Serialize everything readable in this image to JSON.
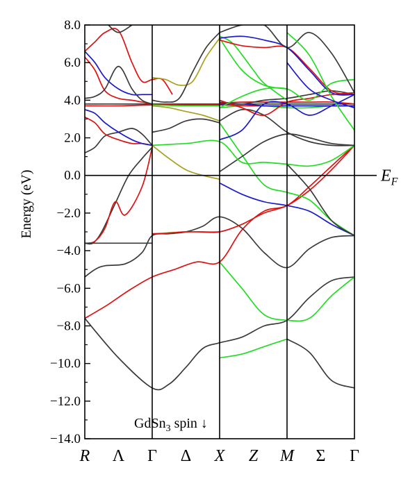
{
  "chart_data": {
    "type": "line",
    "title": "",
    "xlabel": "",
    "ylabel": "Energy (eV)",
    "ylim": [
      -14.0,
      8.0
    ],
    "y_ticks": [
      8.0,
      6.0,
      4.0,
      2.0,
      0.0,
      -2.0,
      -4.0,
      -6.0,
      -8.0,
      -10.0,
      -12.0,
      -14.0
    ],
    "y_tick_labels": [
      "8.0",
      "6.0",
      "4.0",
      "2.0",
      "0.0",
      "−2.0",
      "−4.0",
      "−6.0",
      "−8.0",
      "−10.0",
      "−12.0",
      "−14.0"
    ],
    "k_path": {
      "labels": [
        "R",
        "Λ",
        "Γ",
        "Δ",
        "X",
        "Z",
        "M",
        "Σ",
        "Γ"
      ],
      "positions": [
        0,
        0.5,
        1.0,
        1.5,
        2.0,
        2.5,
        3.0,
        3.5,
        4.0
      ],
      "high_symmetry": [
        1.0,
        2.0,
        3.0
      ],
      "greek": [
        false,
        true,
        true,
        true,
        false,
        false,
        false,
        true,
        true
      ]
    },
    "fermi_level": {
      "energy": 0.0,
      "label": "E",
      "subscript": "F"
    },
    "annotation": {
      "prefix": "GdSn",
      "sub": "3",
      "suffix": " spin ↓"
    },
    "colors": {
      "black": "#3a3a3a",
      "red": "#e01010",
      "blue": "#1a1acc",
      "green": "#22dd22",
      "olive": "#a8a020",
      "axis": "#000000"
    },
    "series": [
      {
        "color": "red",
        "k": [
          0,
          0.33,
          0.66,
          1.0,
          1.33,
          1.66,
          2.0,
          2.33,
          2.66,
          3.0,
          3.33,
          3.66,
          4.0
        ],
        "e": [
          -7.6,
          -6.9,
          -6.1,
          -5.4,
          -5.0,
          -4.6,
          -4.6,
          -2.9,
          -1.9,
          -1.6,
          -0.6,
          0.5,
          1.6
        ]
      },
      {
        "color": "black",
        "k": [
          0,
          0.5,
          1.0,
          1.25,
          1.5,
          1.75,
          2.0,
          2.33,
          2.66,
          3.0,
          3.33,
          3.66,
          4.0
        ],
        "e": [
          -7.6,
          -9.7,
          -11.3,
          -11.1,
          -10.2,
          -9.2,
          -8.9,
          -8.6,
          -8.0,
          -7.7,
          -6.5,
          -5.6,
          -5.4
        ]
      },
      {
        "color": "green",
        "k": [
          2.0,
          2.33,
          2.66,
          3.0,
          3.33,
          3.66,
          4.0
        ],
        "e": [
          -4.6,
          -6.0,
          -7.4,
          -7.7,
          -7.6,
          -6.4,
          -5.4
        ]
      },
      {
        "color": "green",
        "k": [
          2.0,
          2.33,
          2.66,
          3.0
        ],
        "e": [
          -9.7,
          -9.5,
          -9.1,
          -8.7
        ]
      },
      {
        "color": "black",
        "k": [
          3.0,
          3.33,
          3.66,
          4.0
        ],
        "e": [
          -8.7,
          -9.4,
          -10.9,
          -11.3
        ]
      },
      {
        "color": "black",
        "k": [
          0,
          0.15,
          0.3,
          0.6,
          0.85,
          1.0,
          1.25,
          1.5,
          1.75,
          2.0,
          2.33,
          2.66,
          3.0,
          3.33,
          3.66,
          4.0
        ],
        "e": [
          -5.4,
          -5.0,
          -4.8,
          -4.7,
          -4.1,
          -3.2,
          -3.1,
          -3.0,
          -2.7,
          -2.2,
          -2.8,
          -4.1,
          -4.9,
          -3.9,
          -3.3,
          -3.2
        ]
      },
      {
        "color": "black",
        "k": [
          0,
          0.12,
          0.25,
          0.45,
          0.65,
          0.85,
          1.0
        ],
        "e": [
          -3.6,
          -3.6,
          -3.0,
          -1.5,
          0.0,
          0.9,
          1.5
        ]
      },
      {
        "color": "red",
        "k": [
          0,
          0.15,
          0.3,
          0.45,
          0.6,
          0.85,
          1.0
        ],
        "e": [
          -3.6,
          -3.5,
          -2.8,
          -1.4,
          -2.1,
          -0.6,
          1.5
        ]
      },
      {
        "color": "olive",
        "k": [
          1.0,
          1.5,
          2.0
        ],
        "e": [
          -3.1,
          -3.0,
          -3.0
        ]
      },
      {
        "color": "red",
        "k": [
          1.0,
          1.15,
          1.3,
          1.5,
          1.7,
          2.0,
          2.33,
          2.66,
          3.0,
          3.33,
          3.66,
          4.0
        ],
        "e": [
          -3.1,
          -3.1,
          -3.05,
          -3.0,
          -3.0,
          -3.0,
          -2.6,
          -2.0,
          -1.6,
          -0.8,
          0.3,
          1.6
        ]
      },
      {
        "color": "blue",
        "k": [
          2.0,
          2.33,
          2.66,
          3.0,
          3.33,
          3.66,
          4.0
        ],
        "e": [
          -0.4,
          -1.0,
          -1.4,
          -1.6,
          -1.9,
          -2.6,
          -3.2
        ]
      },
      {
        "color": "green",
        "k": [
          2.0,
          2.33,
          2.66,
          3.0,
          3.33,
          3.66,
          4.0
        ],
        "e": [
          2.8,
          1.1,
          -0.5,
          -0.9,
          -1.3,
          -2.4,
          -3.2
        ]
      },
      {
        "color": "black",
        "k": [
          3.0,
          3.33,
          3.66,
          4.0
        ],
        "e": [
          0.6,
          -0.7,
          -2.4,
          -3.2
        ]
      },
      {
        "color": "black",
        "k": [
          2.0,
          2.33,
          2.66,
          3.0,
          3.33,
          3.66,
          4.0
        ],
        "e": [
          0.2,
          1.0,
          1.8,
          2.2,
          2.0,
          1.7,
          1.6
        ]
      },
      {
        "color": "green",
        "k": [
          1.0,
          1.5,
          2.0,
          2.33,
          2.66,
          3.0,
          3.33,
          3.66,
          4.0
        ],
        "e": [
          1.6,
          1.7,
          1.8,
          0.7,
          0.7,
          0.6,
          0.5,
          0.8,
          1.6
        ]
      },
      {
        "color": "olive",
        "k": [
          1.0,
          1.25,
          1.5,
          1.75,
          2.0
        ],
        "e": [
          1.6,
          0.9,
          0.3,
          0.0,
          -0.2
        ]
      },
      {
        "color": "black",
        "k": [
          0,
          0.15,
          0.3,
          0.5,
          0.7,
          0.85,
          1.0
        ],
        "e": [
          1.2,
          1.5,
          2.1,
          2.3,
          2.5,
          2.2,
          1.6
        ]
      },
      {
        "color": "red",
        "k": [
          0,
          0.15,
          0.3,
          0.5,
          0.7,
          0.85,
          1.0
        ],
        "e": [
          3.1,
          2.8,
          2.2,
          1.9,
          1.7,
          1.7,
          1.6
        ]
      },
      {
        "color": "blue",
        "k": [
          0,
          0.15,
          0.3,
          0.5,
          0.7,
          0.85,
          1.0
        ],
        "e": [
          3.5,
          3.3,
          2.8,
          2.3,
          1.9,
          1.7,
          1.6
        ]
      },
      {
        "color": "black",
        "k": [
          1.0,
          1.25,
          1.5,
          1.75,
          2.0
        ],
        "e": [
          2.3,
          2.5,
          2.9,
          3.0,
          2.8
        ]
      },
      {
        "color": "olive",
        "k": [
          1.0,
          1.25,
          1.5,
          1.75,
          2.0
        ],
        "e": [
          3.7,
          3.6,
          3.4,
          3.2,
          2.9
        ]
      },
      {
        "color": "black",
        "k": [
          2.0,
          2.33,
          2.66,
          3.0,
          3.33,
          3.66,
          4.0
        ],
        "e": [
          2.9,
          3.5,
          3.2,
          2.3,
          1.8,
          1.6,
          1.6
        ]
      },
      {
        "color": "green",
        "k": [
          2.0,
          2.33,
          2.66,
          3.0,
          3.33,
          3.66,
          4.0
        ],
        "e": [
          3.6,
          3.7,
          3.7,
          3.6,
          3.6,
          3.7,
          3.7
        ]
      },
      {
        "color": "black",
        "k": [
          0,
          0.5,
          1.0,
          1.5,
          2.0,
          2.5,
          3.0,
          3.5,
          4.0
        ],
        "e": [
          3.8,
          3.8,
          3.8,
          3.8,
          3.8,
          3.8,
          3.8,
          3.8,
          3.8
        ]
      },
      {
        "color": "red",
        "k": [
          0,
          0.5,
          1.0,
          1.5,
          2.0,
          2.5,
          3.0,
          3.5,
          4.0
        ],
        "e": [
          3.7,
          3.7,
          3.75,
          3.75,
          3.75,
          3.7,
          3.7,
          3.7,
          3.7
        ]
      },
      {
        "color": "green",
        "k": [
          1.0,
          1.5,
          2.0
        ],
        "e": [
          3.75,
          3.7,
          3.7
        ]
      },
      {
        "color": "blue",
        "k": [
          2.0,
          2.33,
          2.66,
          3.0,
          3.33,
          3.66,
          4.0
        ],
        "e": [
          3.8,
          3.8,
          3.7,
          3.7,
          3.7,
          3.7,
          3.7
        ]
      },
      {
        "color": "red",
        "k": [
          2.0,
          2.33,
          2.66,
          3.0,
          3.33,
          3.66,
          4.0
        ],
        "e": [
          3.85,
          3.9,
          3.9,
          3.9,
          3.9,
          3.9,
          3.8
        ]
      },
      {
        "color": "black",
        "k": [
          2.0,
          2.33,
          2.66,
          3.0,
          3.33,
          3.66,
          4.0
        ],
        "e": [
          3.9,
          3.8,
          4.0,
          4.1,
          4.3,
          4.5,
          4.3
        ]
      },
      {
        "color": "red",
        "k": [
          2.0,
          2.33,
          2.66,
          3.0,
          3.33,
          3.66,
          4.0
        ],
        "e": [
          4.0,
          3.6,
          3.2,
          3.9,
          4.1,
          4.3,
          4.4
        ]
      },
      {
        "color": "blue",
        "k": [
          2.0,
          2.33,
          2.66,
          3.0,
          3.33,
          3.66,
          4.0
        ],
        "e": [
          1.9,
          2.4,
          3.8,
          3.8,
          3.2,
          3.7,
          4.3
        ]
      },
      {
        "color": "green",
        "k": [
          2.0,
          2.33,
          2.66,
          3.0,
          3.33,
          3.66,
          4.0
        ],
        "e": [
          3.6,
          4.2,
          4.6,
          4.6,
          4.0,
          4.9,
          5.1
        ]
      },
      {
        "color": "blue",
        "k": [
          0,
          0.15,
          0.3,
          0.5,
          0.7,
          0.85,
          1.0
        ],
        "e": [
          6.6,
          6.0,
          5.2,
          4.6,
          4.3,
          4.3,
          4.3
        ]
      },
      {
        "color": "red",
        "k": [
          0,
          0.15,
          0.3,
          0.5,
          0.7,
          0.85,
          1.0
        ],
        "e": [
          6.3,
          5.6,
          4.5,
          4.1,
          4.0,
          3.9,
          3.8
        ]
      },
      {
        "color": "black",
        "k": [
          0,
          0.15,
          0.3,
          0.5,
          0.7,
          0.85,
          1.0
        ],
        "e": [
          4.1,
          4.2,
          4.6,
          5.8,
          4.6,
          4.0,
          3.8
        ]
      },
      {
        "color": "red",
        "k": [
          0,
          0.15,
          0.3,
          0.5,
          0.7,
          0.85,
          1.0,
          1.15,
          1.3
        ],
        "e": [
          6.6,
          7.1,
          7.6,
          7.7,
          6.0,
          5.0,
          5.1,
          5.1,
          4.3
        ]
      },
      {
        "color": "olive",
        "k": [
          1.0,
          1.2,
          1.4,
          1.6,
          1.8,
          2.0
        ],
        "e": [
          5.2,
          5.1,
          4.8,
          5.0,
          6.3,
          7.3
        ]
      },
      {
        "color": "black",
        "k": [
          1.0,
          1.2,
          1.4,
          1.6,
          1.8,
          2.0
        ],
        "e": [
          4.0,
          3.9,
          4.1,
          5.5,
          6.8,
          7.6
        ]
      },
      {
        "color": "green",
        "k": [
          2.0,
          2.33,
          2.66,
          3.0
        ],
        "e": [
          7.3,
          5.6,
          4.8,
          4.6
        ]
      },
      {
        "color": "green",
        "k": [
          2.0,
          2.2,
          2.5,
          2.66,
          3.0
        ],
        "e": [
          7.4,
          7.0,
          5.6,
          4.9,
          4.0
        ]
      },
      {
        "color": "red",
        "k": [
          2.0,
          2.33,
          2.66,
          3.0,
          3.33,
          3.66,
          4.0
        ],
        "e": [
          7.2,
          6.9,
          6.8,
          6.8,
          5.7,
          4.5,
          4.3
        ]
      },
      {
        "color": "blue",
        "k": [
          2.0,
          2.33,
          2.66,
          3.0,
          3.33,
          3.66,
          4.0
        ],
        "e": [
          7.3,
          7.4,
          7.2,
          6.8,
          5.6,
          4.4,
          4.3
        ]
      },
      {
        "color": "black",
        "k": [
          2.0,
          2.33,
          2.66,
          3.0,
          3.33,
          3.66,
          4.0
        ],
        "e": [
          7.6,
          8.0,
          8.0,
          6.8,
          7.6,
          6.5,
          4.4
        ]
      },
      {
        "color": "green",
        "k": [
          3.0,
          3.33,
          3.66,
          4.0
        ],
        "e": [
          7.6,
          6.4,
          4.2,
          2.4
        ]
      },
      {
        "color": "blue",
        "k": [
          3.0,
          3.33,
          3.66,
          4.0
        ],
        "e": [
          6.0,
          4.6,
          4.0,
          3.6
        ]
      },
      {
        "color": "black",
        "k": [
          0.35,
          0.5,
          0.7
        ],
        "e": [
          8.0,
          7.6,
          8.0
        ]
      },
      {
        "color": "black",
        "k": [
          0,
          1.0
        ],
        "e": [
          -3.6,
          -3.6
        ]
      }
    ]
  }
}
